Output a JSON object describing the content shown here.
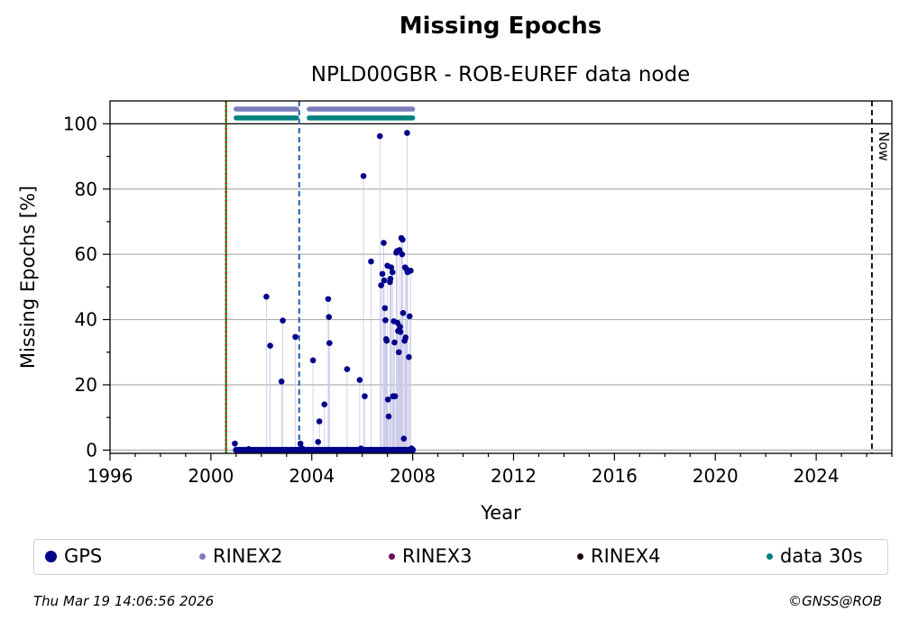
{
  "chart_data": {
    "type": "scatter",
    "title": "Missing Epochs",
    "subtitle": "NPLD00GBR - ROB-EUREF data node",
    "xlabel": "Year",
    "ylabel": "Missing Epochs [%]",
    "xlim": [
      1996,
      2027
    ],
    "ylim": [
      -1,
      107
    ],
    "xticks": [
      1996,
      2000,
      2004,
      2008,
      2012,
      2016,
      2020,
      2024
    ],
    "yticks": [
      0,
      20,
      40,
      60,
      80,
      100
    ],
    "grid": true,
    "now_label": "Now",
    "now_year": 2026.21,
    "vlines": [
      {
        "x": 2000.6,
        "color": "#008000",
        "style": "solid"
      },
      {
        "x": 2000.6,
        "color": "#cc0000",
        "style": "dotted"
      },
      {
        "x": 2003.5,
        "color": "#1f5fa8",
        "style": "dashed"
      }
    ],
    "legend": [
      {
        "label": "GPS",
        "color": "#00008b",
        "size": "large"
      },
      {
        "label": "RINEX2",
        "color": "#7b7bc0",
        "size": "small"
      },
      {
        "label": "RINEX3",
        "color": "#6a0d5a",
        "size": "small"
      },
      {
        "label": "RINEX4",
        "color": "#1a0010",
        "size": "small"
      },
      {
        "label": "data 30s",
        "color": "#008080",
        "size": "small"
      }
    ],
    "availability_bars": [
      {
        "name": "RINEX2",
        "y": 104.5,
        "color": "#7b7bc0",
        "segments": [
          [
            2001.0,
            2003.4
          ],
          [
            2003.9,
            2008.0
          ]
        ]
      },
      {
        "name": "data 30s",
        "y": 101.8,
        "color": "#008080",
        "segments": [
          [
            2001.0,
            2003.4
          ],
          [
            2003.9,
            2008.0
          ]
        ]
      }
    ],
    "baseline": {
      "y": 0,
      "from": 2001.0,
      "to": 2008.0,
      "color": "#00008b"
    },
    "series": [
      {
        "name": "GPS",
        "color": "#00008b",
        "points": [
          [
            2000.95,
            2
          ],
          [
            2001.5,
            0.3
          ],
          [
            2002.2,
            47
          ],
          [
            2002.35,
            32
          ],
          [
            2002.8,
            21
          ],
          [
            2002.85,
            39.7
          ],
          [
            2003.35,
            34.7
          ],
          [
            2003.55,
            2
          ],
          [
            2003.62,
            0.5
          ],
          [
            2004.05,
            27.5
          ],
          [
            2004.25,
            2.5
          ],
          [
            2004.3,
            8.8
          ],
          [
            2004.5,
            14
          ],
          [
            2004.65,
            46.3
          ],
          [
            2004.68,
            40.8
          ],
          [
            2004.7,
            32.8
          ],
          [
            2005.4,
            24.8
          ],
          [
            2005.9,
            21.5
          ],
          [
            2005.95,
            0.5
          ],
          [
            2006.05,
            84
          ],
          [
            2006.1,
            16.5
          ],
          [
            2006.35,
            57.8
          ],
          [
            2006.7,
            96.2
          ],
          [
            2006.75,
            50.5
          ],
          [
            2006.8,
            54
          ],
          [
            2006.85,
            63.5
          ],
          [
            2006.87,
            52
          ],
          [
            2006.9,
            43.5
          ],
          [
            2006.92,
            39.8
          ],
          [
            2006.95,
            34
          ],
          [
            2006.97,
            33.5
          ],
          [
            2007.0,
            56.5
          ],
          [
            2007.02,
            15.5
          ],
          [
            2007.05,
            10.3
          ],
          [
            2007.1,
            51.5
          ],
          [
            2007.12,
            52.5
          ],
          [
            2007.15,
            56
          ],
          [
            2007.2,
            54.5
          ],
          [
            2007.22,
            16.5
          ],
          [
            2007.25,
            39.5
          ],
          [
            2007.28,
            33
          ],
          [
            2007.3,
            16.5
          ],
          [
            2007.35,
            60.5
          ],
          [
            2007.38,
            61
          ],
          [
            2007.4,
            39
          ],
          [
            2007.42,
            36.5
          ],
          [
            2007.45,
            30
          ],
          [
            2007.48,
            61.3
          ],
          [
            2007.5,
            37.8
          ],
          [
            2007.52,
            36.2
          ],
          [
            2007.55,
            65
          ],
          [
            2007.58,
            60
          ],
          [
            2007.6,
            64.5
          ],
          [
            2007.62,
            42
          ],
          [
            2007.65,
            3.5
          ],
          [
            2007.68,
            33.5
          ],
          [
            2007.7,
            56
          ],
          [
            2007.72,
            34.5
          ],
          [
            2007.75,
            55.5
          ],
          [
            2007.78,
            97.2
          ],
          [
            2007.8,
            54.5
          ],
          [
            2007.85,
            28.5
          ],
          [
            2007.88,
            41
          ],
          [
            2007.92,
            55
          ],
          [
            2007.95,
            0.5
          ],
          [
            2008.0,
            0.2
          ]
        ]
      }
    ]
  },
  "footer": {
    "timestamp": "Thu Mar 19 14:06:56 2026",
    "copyright": "©GNSS@ROB"
  }
}
